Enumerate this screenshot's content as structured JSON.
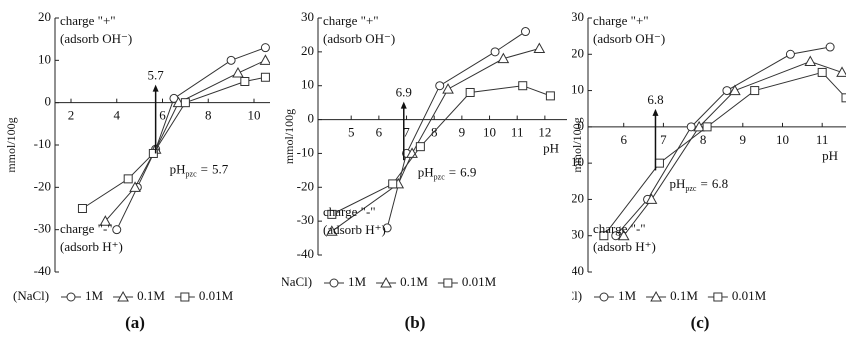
{
  "chart_data": [
    {
      "type": "line",
      "label": "(a)",
      "y_label": "mmol/100g",
      "xlim": [
        1.3,
        10.7
      ],
      "ylim": [
        -40,
        20
      ],
      "xticks": [
        2,
        4,
        6,
        8,
        10
      ],
      "yticks": [
        -40,
        -30,
        -20,
        -10,
        0,
        10,
        20
      ],
      "pos_charge": "charge \"+\"",
      "pos_adsorb": "(adsorb OH⁻)",
      "neg_charge": "charge \"-\"",
      "neg_adsorb": "(adsorb H⁺)",
      "pzc": 5.7,
      "pzc_main": "pH",
      "pzc_sub": "pzc",
      "pzc_eq": "=",
      "legend_prefix": "(NaCl)",
      "series": [
        {
          "name": "1M",
          "marker": "circle",
          "color": "#333",
          "x": [
            4.0,
            4.9,
            5.7,
            6.5,
            9.0,
            10.5
          ],
          "values": [
            -30,
            -20,
            -11,
            1,
            10,
            13
          ]
        },
        {
          "name": "0.1M",
          "marker": "triangle",
          "color": "#333",
          "x": [
            3.5,
            4.8,
            5.7,
            6.7,
            9.3,
            10.5
          ],
          "values": [
            -28,
            -20,
            -11,
            0,
            7,
            10
          ]
        },
        {
          "name": "0.01M",
          "marker": "square",
          "color": "#333",
          "x": [
            2.5,
            4.5,
            5.6,
            7.0,
            9.6,
            10.5
          ],
          "values": [
            -25,
            -18,
            -12,
            0,
            5,
            6
          ]
        }
      ]
    },
    {
      "type": "line",
      "label": "(b)",
      "y_label": "mmol/100g",
      "x_label": "pH",
      "xlim": [
        3.8,
        12.8
      ],
      "ylim": [
        -40,
        30
      ],
      "xticks": [
        5,
        6,
        7,
        8,
        9,
        10,
        11,
        12
      ],
      "yticks": [
        -40,
        -30,
        -20,
        -10,
        0,
        10,
        20,
        30
      ],
      "pos_charge": "charge \"+\"",
      "pos_adsorb": "(adsorb OH⁻)",
      "neg_charge": "charge \"-\"",
      "neg_adsorb": "(adsorb H⁺)",
      "pzc": 6.9,
      "pzc_main": "pH",
      "pzc_sub": "pzc",
      "pzc_eq": "=",
      "legend_prefix": "(NaCl)",
      "series": [
        {
          "name": "1M",
          "marker": "circle",
          "color": "#333",
          "x": [
            6.3,
            7.0,
            8.2,
            10.2,
            11.3
          ],
          "values": [
            -32,
            -10,
            10,
            20,
            26
          ]
        },
        {
          "name": "0.1M",
          "marker": "triangle",
          "color": "#333",
          "x": [
            4.3,
            6.7,
            7.2,
            8.5,
            10.5,
            11.8
          ],
          "values": [
            -33,
            -19,
            -10,
            9,
            18,
            21
          ]
        },
        {
          "name": "0.01M",
          "marker": "square",
          "color": "#333",
          "x": [
            4.3,
            6.5,
            7.5,
            9.3,
            11.2,
            12.2
          ],
          "values": [
            -28,
            -19,
            -8,
            8,
            10,
            7
          ]
        }
      ]
    },
    {
      "type": "line",
      "label": "(c)",
      "y_label": "mmol/100g",
      "x_label": "pH",
      "xlim": [
        5.1,
        11.6
      ],
      "ylim": [
        -40,
        30
      ],
      "xticks": [
        6,
        7,
        8,
        9,
        10,
        11
      ],
      "yticks": [
        -40,
        -30,
        -20,
        -10,
        0,
        10,
        20,
        30
      ],
      "pos_charge": "charge \"+\"",
      "pos_adsorb": "(adsorb OH⁻)",
      "neg_charge": "charge \"-\"",
      "neg_adsorb": "(adsorb H⁺)",
      "pzc": 6.8,
      "pzc_main": "pH",
      "pzc_sub": "pzc",
      "pzc_eq": "=",
      "legend_prefix": "(NaCl)",
      "series": [
        {
          "name": "1M",
          "marker": "circle",
          "color": "#333",
          "x": [
            5.8,
            6.6,
            7.7,
            8.6,
            10.2,
            11.2
          ],
          "values": [
            -30,
            -20,
            0,
            10,
            20,
            22
          ]
        },
        {
          "name": "0.1M",
          "marker": "triangle",
          "color": "#333",
          "x": [
            6.0,
            6.7,
            7.9,
            8.8,
            10.7,
            11.5
          ],
          "values": [
            -30,
            -20,
            0,
            10,
            18,
            15
          ]
        },
        {
          "name": "0.01M",
          "marker": "square",
          "color": "#333",
          "x": [
            5.5,
            6.9,
            8.1,
            9.3,
            11.0,
            11.6
          ],
          "values": [
            -30,
            -10,
            0,
            10,
            15,
            8
          ]
        }
      ]
    }
  ]
}
